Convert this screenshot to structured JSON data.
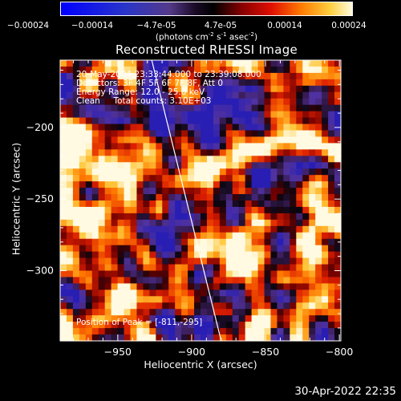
{
  "colorbar": {
    "ticks": [
      "-0.00024",
      "-0.00014",
      "-4.7e-05",
      "4.7e-05",
      "0.00014",
      "0.00024"
    ],
    "units_main": "(photons cm",
    "units_sup1": "-2",
    "units_mid1": " s",
    "units_sup2": "-1",
    "units_mid2": " asec",
    "units_sup3": "-2",
    "units_end": ")"
  },
  "chart_data": {
    "type": "heatmap",
    "title": "Reconstructed RHESSI Image",
    "xlabel": "Heliocentric X (arcsec)",
    "ylabel": "Heliocentric Y (arcsec)",
    "xlim": [
      -989,
      -799
    ],
    "ylim": [
      -349,
      -153
    ],
    "x_ticks": [
      -950,
      -900,
      -850,
      -800
    ],
    "y_ticks": [
      -200,
      -250,
      -300
    ],
    "x_tick_labels": [
      "−950",
      "−900",
      "−850",
      "−800"
    ],
    "y_tick_labels": [
      "−200",
      "−250",
      "−300"
    ],
    "colorbar_range": [
      -0.00024,
      0.00024
    ],
    "limb_line": {
      "x": [
        -927,
        -880
      ],
      "y": [
        -153,
        -349
      ]
    },
    "peak": [
      -811,
      -295
    ]
  },
  "annotations": {
    "time_range": "20-May-2004 23:33:44.000 to 23:39:08.000",
    "detectors": "Detectors: 3F 4F 5F 6F 7F 8F, Att 0",
    "energy": "Energy Range: 12.0 - 25.0 keV",
    "clean": "Clean     Total counts: 3.10E+03",
    "peak_label": "Position of Peak = [-811,-295]"
  },
  "timestamp": "30-Apr-2022 22:35"
}
